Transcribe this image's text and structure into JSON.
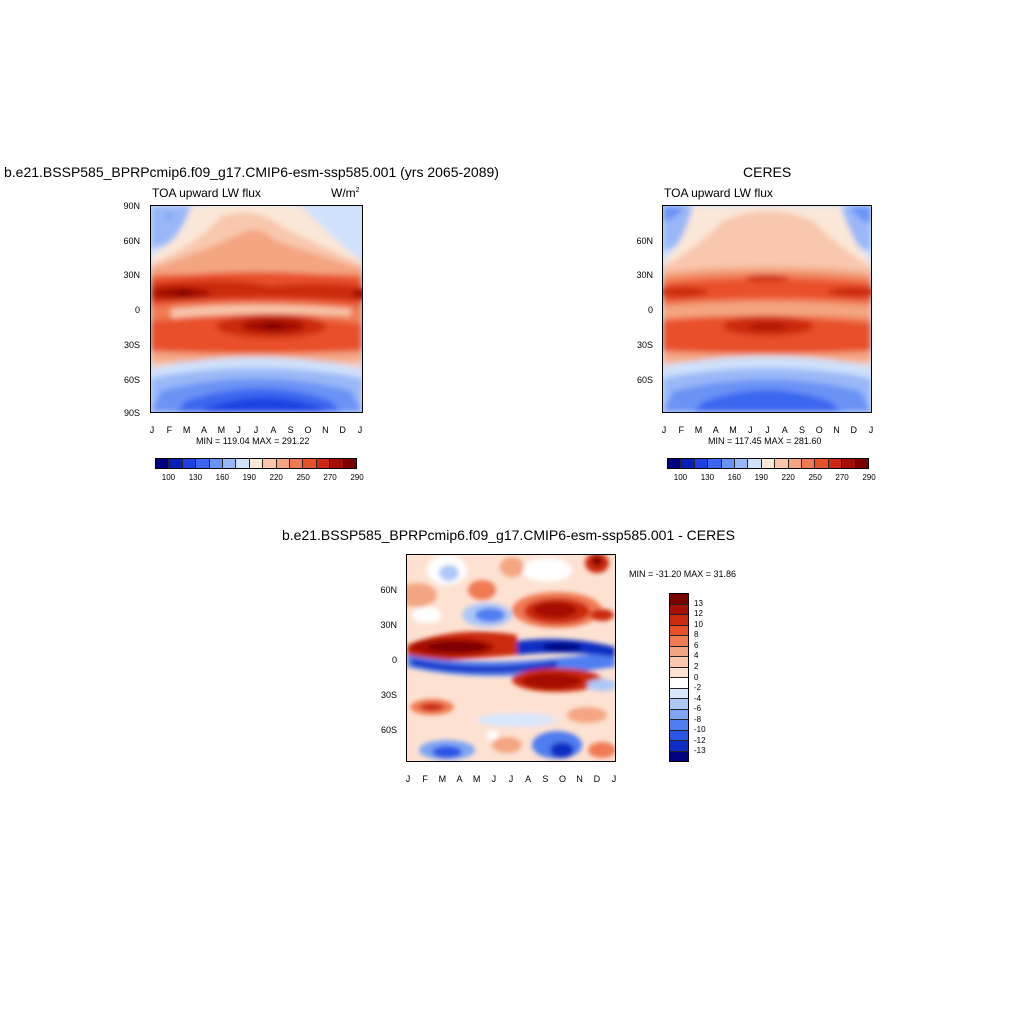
{
  "colors": {
    "abs_scale": [
      "#00007f",
      "#0a1fb8",
      "#1f3fe0",
      "#3a66f0",
      "#6a93f5",
      "#9ab8f8",
      "#cfe1fb",
      "#fbe8d8",
      "#f8c7ad",
      "#f4a582",
      "#f07a52",
      "#e8502a",
      "#cc2a10",
      "#a50f05",
      "#7a0000"
    ],
    "diff_scale": [
      "#7a0000",
      "#a50f05",
      "#cc2a10",
      "#e8502a",
      "#f07a52",
      "#f4a582",
      "#f8c7ad",
      "#fde2d2",
      "#ffffff",
      "#d9e6fb",
      "#adc8f7",
      "#7fa5f3",
      "#4f7ef0",
      "#2a55e5",
      "#0f2fc4",
      "#000080"
    ]
  },
  "panels": {
    "left": {
      "title": "b.e21.BSSP585_BPRPcmip6.f09_g17.CMIP6-esm-ssp585.001 (yrs 2065-2089)",
      "variable": "TOA upward LW flux",
      "units": "W/m",
      "units_sup": "2",
      "stats": "MIN = 119.04 MAX = 291.22",
      "y_ticks": [
        "90N",
        "60N",
        "30N",
        "0",
        "30S",
        "60S",
        "90S"
      ],
      "x_ticks": [
        "J",
        "F",
        "M",
        "A",
        "M",
        "J",
        "J",
        "A",
        "S",
        "O",
        "N",
        "D",
        "J"
      ],
      "colorbar_labels": [
        "100",
        "130",
        "160",
        "190",
        "220",
        "250",
        "270",
        "290"
      ]
    },
    "right": {
      "title": "CERES",
      "variable": "TOA upward LW flux",
      "stats": "MIN = 117.45 MAX = 281.60",
      "y_ticks": [
        "60N",
        "30N",
        "0",
        "30S",
        "60S"
      ],
      "x_ticks": [
        "J",
        "F",
        "M",
        "A",
        "M",
        "J",
        "J",
        "A",
        "S",
        "O",
        "N",
        "D",
        "J"
      ],
      "colorbar_labels": [
        "100",
        "130",
        "160",
        "190",
        "220",
        "250",
        "270",
        "290"
      ]
    },
    "bottom": {
      "title": "b.e21.BSSP585_BPRPcmip6.f09_g17.CMIP6-esm-ssp585.001 - CERES",
      "stats": "MIN = -31.20 MAX =  31.86",
      "y_ticks": [
        "60N",
        "30N",
        "0",
        "30S",
        "60S"
      ],
      "x_ticks": [
        "J",
        "F",
        "M",
        "A",
        "M",
        "J",
        "J",
        "A",
        "S",
        "O",
        "N",
        "D",
        "J"
      ],
      "colorbar_labels": [
        "13",
        "12",
        "10",
        "8",
        "6",
        "4",
        "2",
        "0",
        "-2",
        "-4",
        "-6",
        "-8",
        "-10",
        "-12",
        "-13"
      ]
    }
  },
  "chart_data": [
    {
      "type": "heatmap",
      "title": "b.e21.BSSP585_BPRPcmip6.f09_g17.CMIP6-esm-ssp585.001 (yrs 2065-2089)",
      "subtitle": "TOA upward LW flux",
      "units": "W/m2",
      "x": [
        "J",
        "F",
        "M",
        "A",
        "M",
        "J",
        "J",
        "A",
        "S",
        "O",
        "N",
        "D",
        "J"
      ],
      "y": [
        "90N",
        "60N",
        "30N",
        "0",
        "30S",
        "60S",
        "90S"
      ],
      "min": 119.04,
      "max": 291.22,
      "colorbar": [
        100,
        130,
        160,
        190,
        220,
        250,
        270,
        290
      ]
    },
    {
      "type": "heatmap",
      "title": "CERES",
      "subtitle": "TOA upward LW flux",
      "x": [
        "J",
        "F",
        "M",
        "A",
        "M",
        "J",
        "J",
        "A",
        "S",
        "O",
        "N",
        "D",
        "J"
      ],
      "y": [
        "60N",
        "30N",
        "0",
        "30S",
        "60S"
      ],
      "min": 117.45,
      "max": 281.6,
      "colorbar": [
        100,
        130,
        160,
        190,
        220,
        250,
        270,
        290
      ]
    },
    {
      "type": "heatmap",
      "title": "b.e21.BSSP585_BPRPcmip6.f09_g17.CMIP6-esm-ssp585.001 - CERES",
      "x": [
        "J",
        "F",
        "M",
        "A",
        "M",
        "J",
        "J",
        "A",
        "S",
        "O",
        "N",
        "D",
        "J"
      ],
      "y": [
        "60N",
        "30N",
        "0",
        "30S",
        "60S"
      ],
      "min": -31.2,
      "max": 31.86,
      "colorbar": [
        13,
        12,
        10,
        8,
        6,
        4,
        2,
        0,
        -2,
        -4,
        -6,
        -8,
        -10,
        -12,
        -13
      ]
    }
  ]
}
